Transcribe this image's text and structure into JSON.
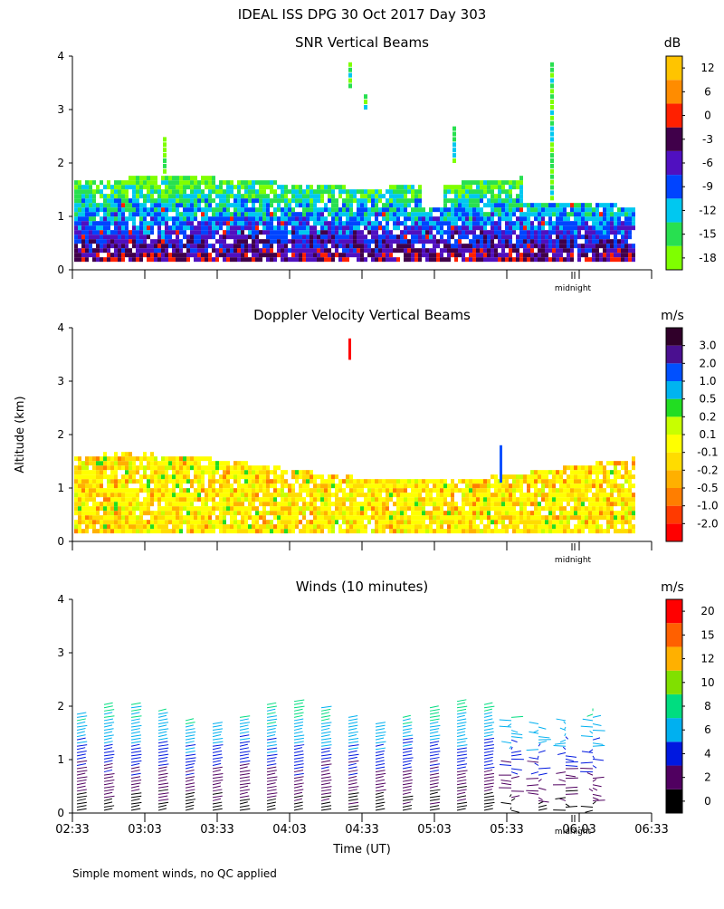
{
  "page_title": "IDEAL ISS DPG  30 Oct 2017 Day 303",
  "footnote": "Simple moment winds, no QC applied",
  "y_axis_label": "Altitude (km)",
  "x_axis_label": "Time (UT)",
  "time_ticks": [
    "02:33",
    "03:03",
    "03:33",
    "04:03",
    "04:33",
    "05:03",
    "05:33",
    "06:03",
    "06:33"
  ],
  "midnight_label": "midnight",
  "chart_data": [
    {
      "type": "heatmap",
      "title": "SNR Vertical Beams",
      "unit": "dB",
      "ylim": [
        0,
        4
      ],
      "y_ticks": [
        0,
        1,
        2,
        3,
        4
      ],
      "colorbar": {
        "colors": [
          "#7fff00",
          "#28e050",
          "#00c8f0",
          "#0044ff",
          "#5010c0",
          "#40004a",
          "#ff2000",
          "#ff8c00",
          "#ffc400"
        ],
        "labels": [
          "-18",
          "-15",
          "-12",
          "-9",
          "-6",
          "-3",
          "0",
          "6",
          "12"
        ]
      },
      "data_summary": "Returns mostly between 0.15 and 1.7 km; strongest (red/orange) near the surface; sparse echoes up to 4 km around 04:35"
    },
    {
      "type": "heatmap",
      "title": "Doppler Velocity Vertical Beams",
      "unit": "m/s",
      "ylim": [
        0,
        4
      ],
      "y_ticks": [
        0,
        1,
        2,
        3,
        4
      ],
      "colorbar": {
        "colors": [
          "#ff0000",
          "#ff3a00",
          "#ff7e00",
          "#ffb000",
          "#ffdc00",
          "#ffff00",
          "#c8ff00",
          "#22dd22",
          "#00b4f0",
          "#0050ff",
          "#4a1090",
          "#30002a"
        ],
        "labels": [
          "-2.0",
          "-1.0",
          "-0.5",
          "-0.2",
          "-0.1",
          "0.1",
          "0.2",
          "0.5",
          "1.0",
          "2.0",
          "3.0"
        ]
      },
      "data_summary": "Mostly near-zero (yellow/orange) velocities between 0.15 and 1.6 km"
    },
    {
      "type": "barbs",
      "title": "Winds (10 minutes)",
      "unit": "m/s",
      "ylim": [
        0,
        4
      ],
      "y_ticks": [
        0,
        1,
        2,
        3,
        4
      ],
      "colorbar": {
        "colors": [
          "#000000",
          "#500060",
          "#0018e0",
          "#00b0f0",
          "#00dd80",
          "#80e000",
          "#ffb000",
          "#ff6000",
          "#ff0000"
        ],
        "labels": [
          "0",
          "2",
          "4",
          "6",
          "8",
          "10",
          "12",
          "15",
          "20"
        ]
      },
      "data_summary": "Wind barb profiles every 10 minutes up to about 2 km, speeds mostly 0-8 m/s"
    }
  ]
}
